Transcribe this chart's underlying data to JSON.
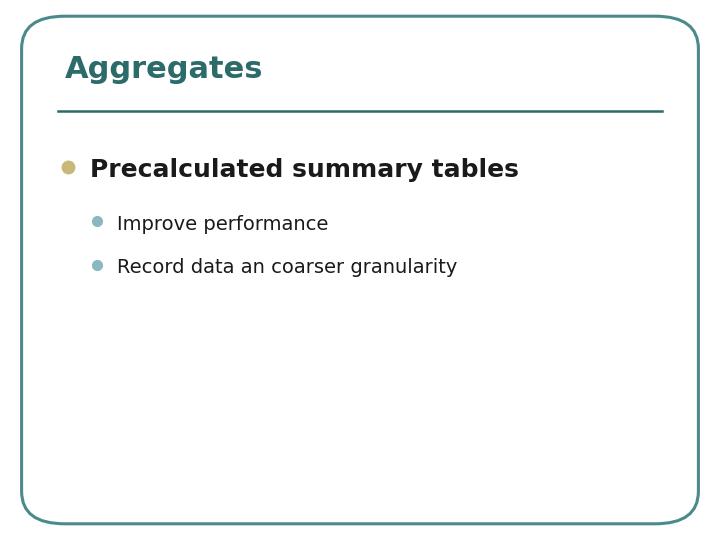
{
  "title": "Aggregates",
  "title_color": "#2d6b6b",
  "title_fontsize": 22,
  "title_bold": true,
  "separator_color": "#2d6b6b",
  "background_color": "#ffffff",
  "border_color": "#4a8a8a",
  "main_bullet_text": "Precalculated summary tables",
  "main_bullet_color": "#c8b87a",
  "main_bullet_fontsize": 18,
  "main_bullet_bold": true,
  "main_text_color": "#1a1a1a",
  "sub_bullets": [
    "Improve performance",
    "Record data an coarser granularity"
  ],
  "sub_bullet_color": "#8ab8c0",
  "sub_bullet_fontsize": 14,
  "sub_text_color": "#1a1a1a",
  "fig_width": 7.2,
  "fig_height": 5.4,
  "dpi": 100
}
